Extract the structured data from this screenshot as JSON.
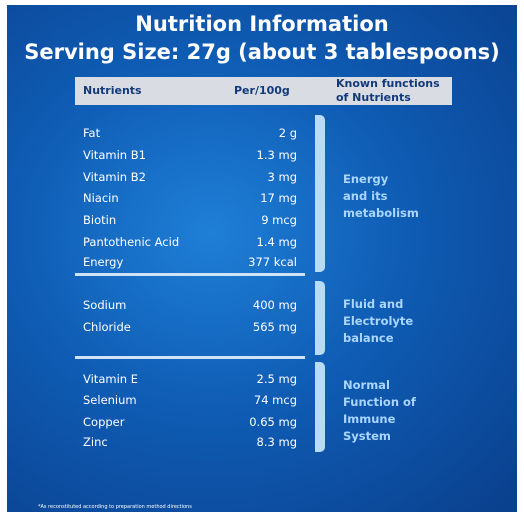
{
  "title": [
    "Nutrition Information",
    "Serving Size: 27g (about 3 tablespoons)"
  ],
  "header": {
    "nutrients": "Nutrients",
    "per100g": "Per/100g",
    "functions": [
      "Known functions",
      "of Nutrients"
    ]
  },
  "groups": [
    {
      "rows": [
        [
          "Fat",
          "2 g"
        ],
        [
          "Vitamin B1",
          "1.3 mg"
        ],
        [
          "Vitamin B2",
          "3 mg"
        ],
        [
          "Niacin",
          "17 mg"
        ],
        [
          "Biotin",
          "9 mcg"
        ],
        [
          "Pantothenic Acid",
          "1.4 mg"
        ],
        [
          "Energy",
          "377 kcal"
        ]
      ],
      "function": [
        "Energy",
        "and its",
        "metabolism"
      ]
    },
    {
      "rows": [
        [
          "Sodium",
          "400 mg"
        ],
        [
          "Chloride",
          "565 mg"
        ]
      ],
      "function": [
        "Fluid and",
        "Electrolyte",
        "balance"
      ]
    },
    {
      "rows": [
        [
          "Vitamin E",
          "2.5 mg"
        ],
        [
          "Selenium",
          "74 mcg"
        ],
        [
          "Copper",
          "0.65 mg"
        ],
        [
          "Zinc",
          "8.3 mg"
        ]
      ],
      "function": [
        "Normal",
        "Function of",
        "Immune",
        "System"
      ]
    }
  ],
  "footnote": "*As reconstituted according to preparation method directions"
}
